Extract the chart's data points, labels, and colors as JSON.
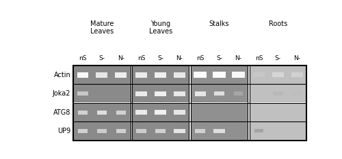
{
  "outer_bg": "#ffffff",
  "panel_bg_list": [
    "#8a8a8a",
    "#8a8a8a",
    "#909090",
    "#c0c0c0"
  ],
  "groups": [
    "Mature\nLeaves",
    "Young\nLeaves",
    "Stalks",
    "Roots"
  ],
  "conditions": [
    "nS",
    "S-",
    "N-"
  ],
  "genes": [
    "Actin",
    "Joka2",
    "ATG8",
    "UP9"
  ],
  "title_fontsize": 7,
  "gene_fontsize": 7,
  "cond_fontsize": 6.5,
  "band_info": {
    "Actin": [
      [
        [
          0.97,
          0.6,
          0.3
        ],
        [
          0.9,
          0.6,
          0.3
        ],
        [
          0.93,
          0.6,
          0.3
        ]
      ],
      [
        [
          0.92,
          0.62,
          0.28
        ],
        [
          0.94,
          0.62,
          0.28
        ],
        [
          0.91,
          0.62,
          0.28
        ]
      ],
      [
        [
          0.99,
          0.7,
          0.32
        ],
        [
          0.99,
          0.7,
          0.32
        ],
        [
          0.97,
          0.7,
          0.32
        ]
      ],
      [
        [
          0.78,
          0.62,
          0.26
        ],
        [
          0.84,
          0.62,
          0.26
        ],
        [
          0.82,
          0.62,
          0.26
        ]
      ]
    ],
    "Joka2": [
      [
        [
          0.78,
          0.55,
          0.22
        ],
        [
          0.0,
          0,
          0
        ],
        [
          0.0,
          0,
          0
        ]
      ],
      [
        [
          0.92,
          0.62,
          0.26
        ],
        [
          0.94,
          0.62,
          0.26
        ],
        [
          0.91,
          0.62,
          0.26
        ]
      ],
      [
        [
          0.9,
          0.58,
          0.26
        ],
        [
          0.87,
          0.55,
          0.24
        ],
        [
          0.65,
          0.48,
          0.2
        ]
      ],
      [
        [
          0.0,
          0,
          0
        ],
        [
          0.72,
          0.55,
          0.22
        ],
        [
          0.74,
          0.55,
          0.22
        ]
      ]
    ],
    "ATG8": [
      [
        [
          0.82,
          0.5,
          0.22
        ],
        [
          0.87,
          0.5,
          0.22
        ],
        [
          0.82,
          0.5,
          0.22
        ]
      ],
      [
        [
          0.92,
          0.62,
          0.26
        ],
        [
          0.94,
          0.62,
          0.26
        ],
        [
          0.9,
          0.62,
          0.26
        ]
      ],
      [
        [
          0.0,
          0,
          0
        ],
        [
          0.0,
          0,
          0
        ],
        [
          0.0,
          0,
          0
        ]
      ],
      [
        [
          0.0,
          0,
          0
        ],
        [
          0.0,
          0,
          0
        ],
        [
          0.0,
          0,
          0
        ]
      ]
    ],
    "UP9": [
      [
        [
          0.82,
          0.5,
          0.2
        ],
        [
          0.8,
          0.5,
          0.2
        ],
        [
          0.82,
          0.5,
          0.2
        ]
      ],
      [
        [
          0.8,
          0.55,
          0.22
        ],
        [
          0.82,
          0.55,
          0.22
        ],
        [
          0.9,
          0.58,
          0.24
        ]
      ],
      [
        [
          0.82,
          0.55,
          0.22
        ],
        [
          0.87,
          0.58,
          0.22
        ],
        [
          0.0,
          0,
          0
        ]
      ],
      [
        [
          0.64,
          0.48,
          0.18
        ],
        [
          0.0,
          0,
          0
        ],
        [
          0.0,
          0,
          0
        ]
      ]
    ]
  }
}
